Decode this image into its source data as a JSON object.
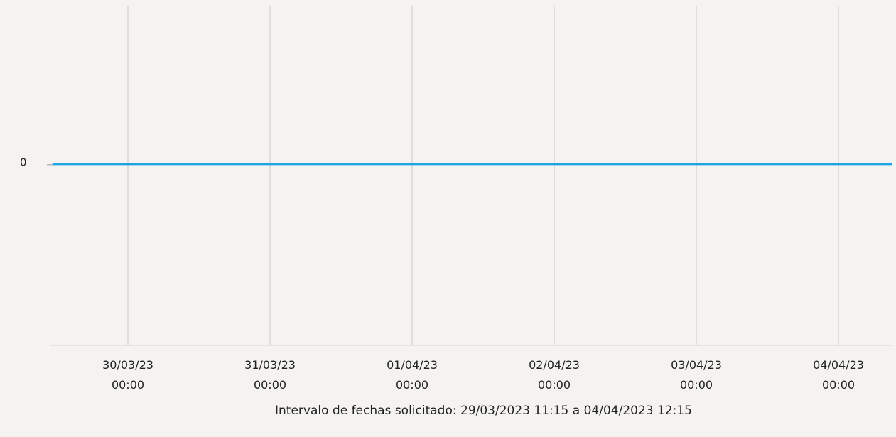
{
  "chart_data": {
    "type": "line",
    "footer": "Intervalo de fechas solicitado: 29/03/2023 11:15 a 04/04/2023 12:15",
    "x": [
      "2023-03-29T11:15",
      "2023-04-04T12:15"
    ],
    "series": [
      {
        "name": null,
        "color": "#1ea5e4",
        "values": [
          0,
          0
        ]
      }
    ],
    "xlim": [
      "2023-03-29T10:48",
      "2023-04-04T09:00"
    ],
    "xticks": [
      {
        "value": "2023-03-30T00:00",
        "label": "30/03/23 00:00"
      },
      {
        "value": "2023-03-31T00:00",
        "label": "31/03/23 00:00"
      },
      {
        "value": "2023-04-01T00:00",
        "label": "01/04/23 00:00"
      },
      {
        "value": "2023-04-02T00:00",
        "label": "02/04/23 00:00"
      },
      {
        "value": "2023-04-03T00:00",
        "label": "03/04/23 00:00"
      },
      {
        "value": "2023-04-04T00:00",
        "label": "04/04/23 00:00"
      }
    ],
    "ylim": [
      -1.13,
      1
    ],
    "yticks": [
      0
    ],
    "grid": true
  }
}
